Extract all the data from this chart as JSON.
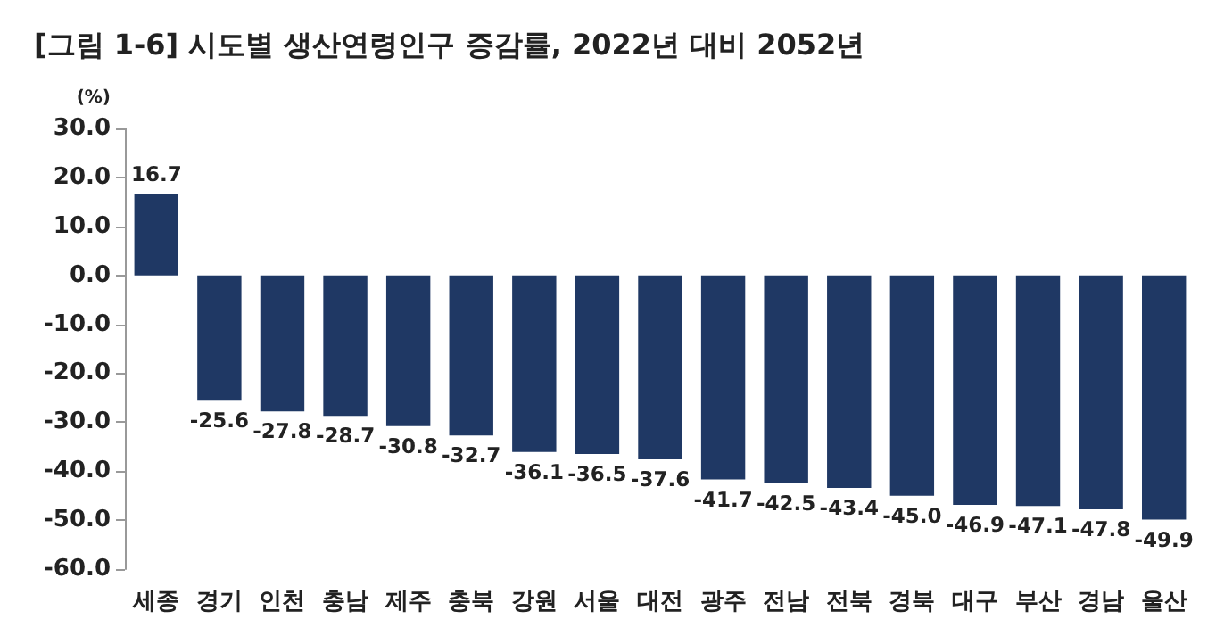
{
  "chart_data": {
    "type": "bar",
    "title": "[그림 1-6] 시도별 생산연령인구 증감률, 2022년 대비 2052년",
    "ylabel": "(%)",
    "categories": [
      "세종",
      "경기",
      "인천",
      "충남",
      "제주",
      "충북",
      "강원",
      "서울",
      "대전",
      "광주",
      "전남",
      "전북",
      "경북",
      "대구",
      "부산",
      "경남",
      "울산"
    ],
    "values": [
      16.7,
      -25.6,
      -27.8,
      -28.7,
      -30.8,
      -32.7,
      -36.1,
      -36.5,
      -37.6,
      -41.7,
      -42.5,
      -43.4,
      -45.0,
      -46.9,
      -47.1,
      -47.8,
      -49.9
    ],
    "value_labels": [
      "16.7",
      "-25.6",
      "-27.8",
      "-28.7",
      "-30.8",
      "-32.7",
      "-36.1",
      "-36.5",
      "-37.6",
      "-41.7",
      "-42.5",
      "-43.4",
      "-45.0",
      "-46.9",
      "-47.1",
      "-47.8",
      "-49.9"
    ],
    "color": "#1f3864",
    "ylim": [
      -60,
      30
    ],
    "yticks": [
      {
        "value": 30,
        "label": "30.0"
      },
      {
        "value": 20,
        "label": "20.0"
      },
      {
        "value": 10,
        "label": "10.0"
      },
      {
        "value": 0,
        "label": "0.0"
      },
      {
        "value": -10,
        "label": "-10.0"
      },
      {
        "value": -20,
        "label": "-20.0"
      },
      {
        "value": -30,
        "label": "-30.0"
      },
      {
        "value": -40,
        "label": "-40.0"
      },
      {
        "value": -50,
        "label": "-50.0"
      },
      {
        "value": -60,
        "label": "-60.0"
      }
    ],
    "grid": false
  }
}
